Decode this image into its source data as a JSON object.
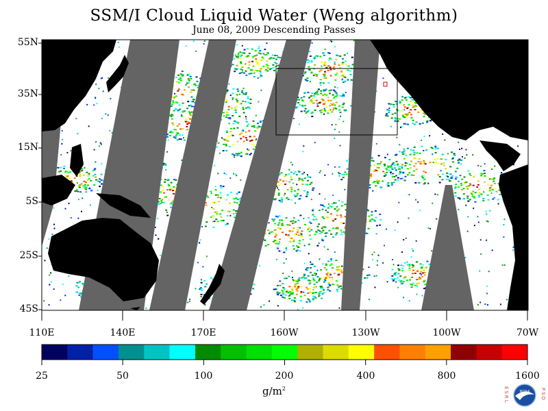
{
  "title": "SSM/I Cloud Liquid Water (Weng algorithm)",
  "subtitle": "June 08, 2009  Descending Passes",
  "y_axis_labels": [
    "55N",
    "35N",
    "15N",
    "5S",
    "25S",
    "45S"
  ],
  "x_axis_labels": [
    "110E",
    "140E",
    "170E",
    "160W",
    "130W",
    "100W",
    "70W"
  ],
  "colorbar": {
    "labels": [
      "25",
      "50",
      "100",
      "200",
      "400",
      "800",
      "1600"
    ],
    "units_base": "g/m",
    "units_sup": "2",
    "colors": [
      "#00005e",
      "#0020a8",
      "#0050ff",
      "#009090",
      "#00c4c4",
      "#00ffff",
      "#008c00",
      "#00c000",
      "#00e000",
      "#00ff00",
      "#b0b000",
      "#dcdc00",
      "#ffff00",
      "#ff5000",
      "#ff8000",
      "#ffa000",
      "#900000",
      "#c80000",
      "#ff0000"
    ]
  },
  "logo": {
    "left_letters": "ESRL",
    "right_letters": "PSD",
    "center_text": "NOAA"
  },
  "map": {
    "land_color": "#000000",
    "gap_color": "#646464",
    "clear_color": "#ffffff"
  }
}
